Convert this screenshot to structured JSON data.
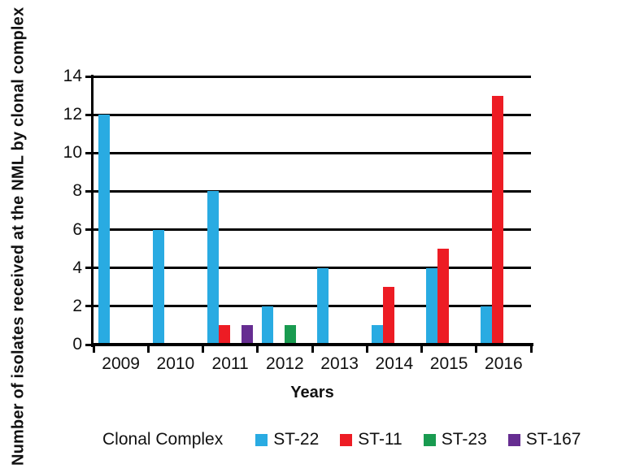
{
  "chart_data": {
    "type": "bar",
    "title": "",
    "xlabel": "Years",
    "ylabel": "Number of isolates received at the NML by clonal complex",
    "categories": [
      "2009",
      "2010",
      "2011",
      "2012",
      "2013",
      "2014",
      "2015",
      "2016"
    ],
    "series": [
      {
        "name": "ST-22",
        "color": "#29ABE2",
        "values": [
          12,
          6,
          8,
          2,
          4,
          1,
          4,
          2
        ]
      },
      {
        "name": "ST-11",
        "color": "#ED1C24",
        "values": [
          0,
          0,
          1,
          0,
          0,
          3,
          5,
          13
        ]
      },
      {
        "name": "ST-23",
        "color": "#199B50",
        "values": [
          0,
          0,
          0,
          1,
          0,
          0,
          0,
          0
        ]
      },
      {
        "name": "ST-167",
        "color": "#662D91",
        "values": [
          0,
          0,
          1,
          0,
          0,
          0,
          0,
          0
        ]
      }
    ],
    "y_ticks": [
      0,
      2,
      4,
      6,
      8,
      10,
      12,
      14
    ],
    "ylim": [
      0,
      14
    ],
    "grid": "horizontal",
    "gridline_color": "#000000",
    "axis_color": "#000000",
    "legend_title": "Clonal Complex",
    "legend_position": "bottom"
  }
}
